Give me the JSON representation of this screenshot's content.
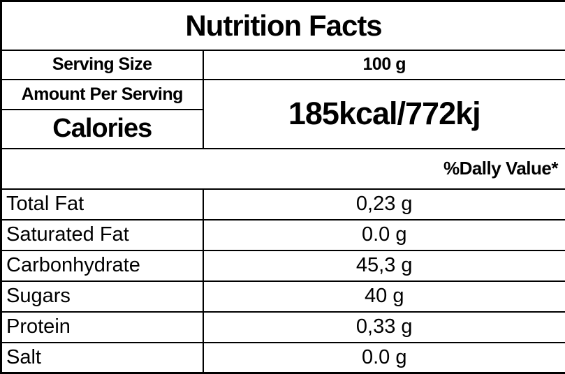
{
  "label": {
    "title": "Nutrition Facts",
    "serving_size": {
      "label": "Serving Size",
      "value": "100 g"
    },
    "amount_per_serving_label": "Amount Per Serving",
    "calories_label": "Calories",
    "calories_value": "185kcal/772kj",
    "daily_value_header": "%Dally Value*",
    "nutrients": [
      {
        "name": "Total Fat",
        "value": "0,23 g"
      },
      {
        "name": "Saturated Fat",
        "value": "0.0 g"
      },
      {
        "name": "Carbonhydrate",
        "value": "45,3 g"
      },
      {
        "name": "Sugars",
        "value": "40 g"
      },
      {
        "name": "Protein",
        "value": "0,33 g"
      },
      {
        "name": "Salt",
        "value": "0.0 g"
      }
    ],
    "colors": {
      "text": "#000000",
      "border": "#000000",
      "background": "#ffffff"
    }
  }
}
